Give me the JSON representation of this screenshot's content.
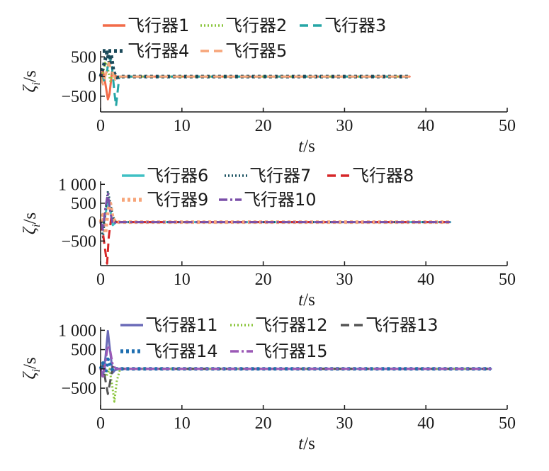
{
  "chart_data": [
    {
      "type": "line",
      "xlabel_italic": "t",
      "xlabel_unit": "/s",
      "ylabel_italic": "ζ",
      "ylabel_sub": "i",
      "ylabel_unit": "/s",
      "xlim": [
        0,
        50
      ],
      "ylim": [
        -900,
        650
      ],
      "xticks": [
        0,
        10,
        20,
        30,
        40,
        50
      ],
      "xtick_labels": [
        "0",
        "10",
        "20",
        "30",
        "40",
        "50"
      ],
      "yticks": [
        500,
        0,
        -500
      ],
      "ytick_labels": [
        "500",
        "0",
        "−500"
      ],
      "x_end": 38,
      "grid": false,
      "legend_position": "top",
      "series": [
        {
          "name": "飞行器1",
          "color": "#f26b49",
          "dash": "solid",
          "x": [
            0,
            0.3,
            0.6,
            0.9,
            1.1,
            1.4,
            1.7,
            2.0,
            2.5,
            38
          ],
          "values": [
            0,
            150,
            -200,
            -580,
            -450,
            120,
            40,
            -10,
            0,
            0
          ]
        },
        {
          "name": "飞行器2",
          "color": "#8cc63f",
          "dash": "dotted",
          "x": [
            0,
            0.3,
            0.6,
            0.9,
            1.2,
            1.5,
            1.8,
            2.2,
            38
          ],
          "values": [
            0,
            100,
            380,
            200,
            -120,
            60,
            -20,
            0,
            0
          ]
        },
        {
          "name": "飞行器3",
          "color": "#26a6a6",
          "dash": "dashed",
          "x": [
            0,
            0.4,
            0.8,
            1.1,
            1.4,
            1.7,
            1.9,
            2.3,
            38
          ],
          "values": [
            0,
            -100,
            150,
            520,
            250,
            -400,
            -750,
            0,
            0
          ]
        },
        {
          "name": "飞行器4",
          "color": "#1c4a5a",
          "dash": "dotted-heavy",
          "x": [
            0,
            0.4,
            0.8,
            1.1,
            1.3,
            1.6,
            2.0,
            2.4,
            38
          ],
          "values": [
            0,
            300,
            620,
            350,
            560,
            120,
            -30,
            0,
            0
          ]
        },
        {
          "name": "飞行器5",
          "color": "#f7a57a",
          "dash": "dashed",
          "x": [
            0,
            0.3,
            0.7,
            1.0,
            1.4,
            1.8,
            2.2,
            38
          ],
          "values": [
            0,
            -200,
            100,
            350,
            150,
            -80,
            0,
            0
          ]
        }
      ]
    },
    {
      "type": "line",
      "xlabel_italic": "t",
      "xlabel_unit": "/s",
      "ylabel_italic": "ζ",
      "ylabel_sub": "i",
      "ylabel_unit": "/s",
      "xlim": [
        0,
        50
      ],
      "ylim": [
        -1150,
        1080
      ],
      "xticks": [
        0,
        10,
        20,
        30,
        40,
        50
      ],
      "xtick_labels": [
        "0",
        "10",
        "20",
        "30",
        "40",
        "50"
      ],
      "yticks": [
        1000,
        500,
        0,
        -500
      ],
      "ytick_labels": [
        "1 000",
        "500",
        "0",
        "−500"
      ],
      "x_end": 43,
      "grid": false,
      "legend_position": "top",
      "series": [
        {
          "name": "飞行器6",
          "color": "#3fc0c4",
          "dash": "solid",
          "x": [
            0,
            0.3,
            0.6,
            0.9,
            1.2,
            1.5,
            1.9,
            38,
            43
          ],
          "values": [
            0,
            -150,
            200,
            600,
            300,
            -80,
            0,
            0,
            0
          ]
        },
        {
          "name": "飞行器7",
          "color": "#1e5563",
          "dash": "dotted",
          "x": [
            0,
            0.3,
            0.6,
            0.9,
            1.2,
            1.5,
            1.9,
            43
          ],
          "values": [
            0,
            -400,
            300,
            820,
            500,
            150,
            0,
            0
          ]
        },
        {
          "name": "飞行器8",
          "color": "#d62728",
          "dash": "dashed",
          "x": [
            0,
            0.3,
            0.6,
            0.8,
            1.0,
            1.3,
            1.7,
            43
          ],
          "values": [
            0,
            -300,
            -800,
            -1100,
            -400,
            100,
            0,
            0
          ]
        },
        {
          "name": "飞行器9",
          "color": "#f7a57a",
          "dash": "dotted-heavy",
          "x": [
            0,
            0.3,
            0.6,
            0.9,
            1.2,
            1.5,
            1.9,
            43
          ],
          "values": [
            0,
            200,
            -300,
            300,
            500,
            100,
            0,
            0
          ]
        },
        {
          "name": "飞行器10",
          "color": "#7a4fa8",
          "dash": "dashdot",
          "x": [
            0,
            0.3,
            0.6,
            0.9,
            1.2,
            1.5,
            1.9,
            43
          ],
          "values": [
            0,
            -200,
            400,
            750,
            250,
            -50,
            0,
            0
          ]
        }
      ]
    },
    {
      "type": "line",
      "xlabel_italic": "t",
      "xlabel_unit": "/s",
      "ylabel_italic": "ζ",
      "ylabel_sub": "i",
      "ylabel_unit": "/s",
      "xlim": [
        0,
        50
      ],
      "ylim": [
        -1050,
        1080
      ],
      "xticks": [
        0,
        10,
        20,
        30,
        40,
        50
      ],
      "xtick_labels": [
        "0",
        "10",
        "20",
        "30",
        "40",
        "50"
      ],
      "yticks": [
        1000,
        500,
        0,
        -500
      ],
      "ytick_labels": [
        "1 000",
        "500",
        "0",
        "−500"
      ],
      "x_end": 48,
      "grid": false,
      "legend_position": "top",
      "series": [
        {
          "name": "飞行器11",
          "color": "#6a6ab8",
          "dash": "solid",
          "x": [
            0,
            0.3,
            0.6,
            0.9,
            1.2,
            1.5,
            1.9,
            48
          ],
          "values": [
            0,
            -200,
            300,
            980,
            400,
            -100,
            0,
            0
          ]
        },
        {
          "name": "飞行器12",
          "color": "#8cc63f",
          "dash": "dotted",
          "x": [
            0,
            0.3,
            0.7,
            1.1,
            1.4,
            1.7,
            2.0,
            2.4,
            48
          ],
          "values": [
            0,
            100,
            -200,
            0,
            -400,
            -850,
            -300,
            0,
            0
          ]
        },
        {
          "name": "飞行器13",
          "color": "#555555",
          "dash": "dashed",
          "x": [
            0,
            0.3,
            0.6,
            0.9,
            1.2,
            1.5,
            1.9,
            48
          ],
          "values": [
            0,
            100,
            -300,
            -650,
            -300,
            50,
            0,
            0
          ]
        },
        {
          "name": "飞行器14",
          "color": "#1f6fb0",
          "dash": "dotted-heavy",
          "x": [
            0,
            0.3,
            0.6,
            0.9,
            1.2,
            1.5,
            1.9,
            48
          ],
          "values": [
            0,
            150,
            -100,
            250,
            100,
            -50,
            0,
            0
          ]
        },
        {
          "name": "飞行器15",
          "color": "#9b59b6",
          "dash": "dashdot",
          "x": [
            0,
            0.3,
            0.6,
            0.9,
            1.2,
            1.5,
            1.9,
            48
          ],
          "values": [
            0,
            -250,
            200,
            600,
            450,
            100,
            0,
            0
          ]
        }
      ]
    }
  ]
}
